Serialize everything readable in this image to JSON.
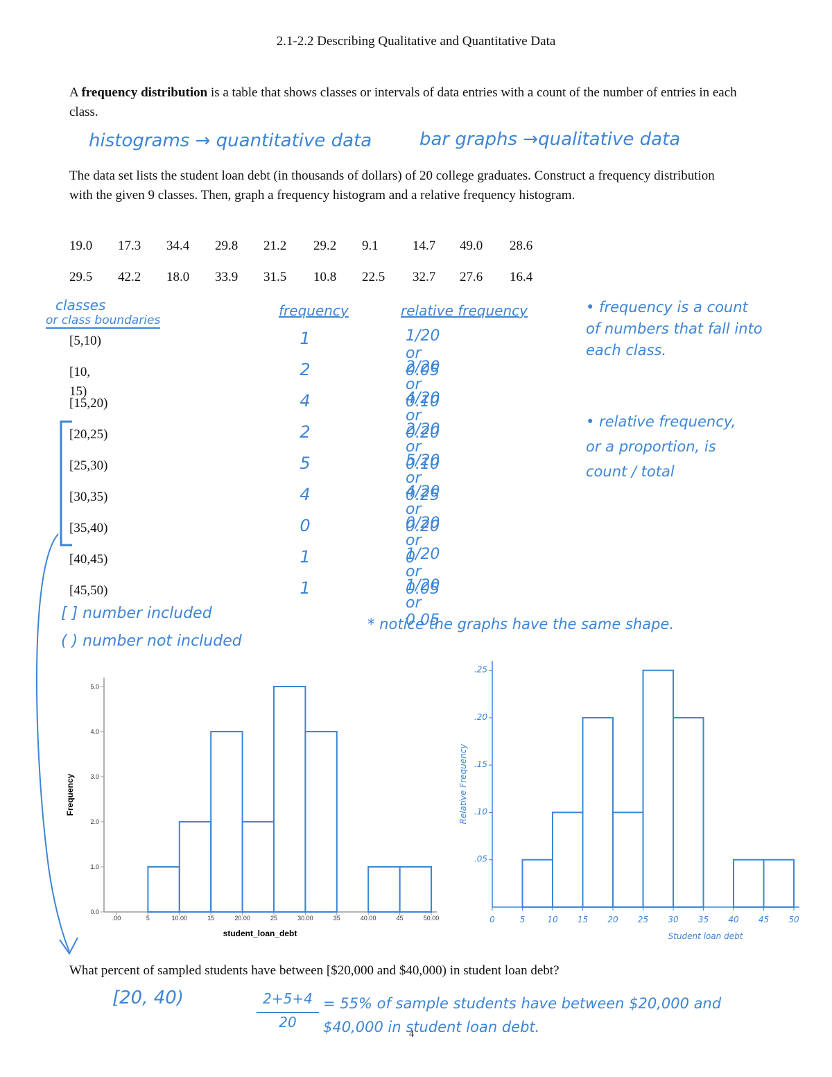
{
  "header": {
    "title": "2.1-2.2 Describing Qualitative and Quantitative Data"
  },
  "definition": {
    "lead": "A ",
    "term": "frequency distribution",
    "rest": " is a table that shows classes or intervals of data entries with a count of the number of entries in each class."
  },
  "note_types": {
    "left": "histograms → quantitative data",
    "right": "bar graphs →qualitative data"
  },
  "problem": "The data set lists the student loan debt (in thousands of dollars) of 20 college graduates. Construct a frequency distribution with the given 9 classes. Then, graph a frequency histogram and a relative frequency histogram.",
  "data_values": [
    [
      "19.0",
      "17.3",
      "34.4",
      "29.8",
      "21.2",
      "29.2",
      "9.1",
      "14.7",
      "49.0",
      "28.6"
    ],
    [
      "29.5",
      "42.2",
      "18.0",
      "33.9",
      "31.5",
      "10.8",
      "22.5",
      "32.7",
      "27.6",
      "16.4"
    ]
  ],
  "table": {
    "header": {
      "classes_line1": "classes",
      "classes_line2": "or class boundaries",
      "frequency": "frequency",
      "relative": "relative frequency"
    },
    "rows": [
      [
        "[5,10)",
        "1",
        "1/20 or 0.05"
      ],
      [
        "[10, 15)",
        "2",
        "2/20 or 0.10"
      ],
      [
        "[15,20)",
        "4",
        "4/20 or 0.20"
      ],
      [
        "[20,25)",
        "2",
        "2/20 or 0.10"
      ],
      [
        "[25,30)",
        "5",
        "5/20 or 0.25"
      ],
      [
        "[30,35)",
        "4",
        "4/20 or 0.20"
      ],
      [
        "[35,40)",
        "0",
        "0/20 or 0"
      ],
      [
        "[40,45)",
        "1",
        "1/20 or 0.05"
      ],
      [
        "[45,50)",
        "1",
        "1/20 or 0.05"
      ]
    ]
  },
  "side_notes": {
    "frequency": "• frequency is a count of numbers that fall into each class.",
    "relative": "• relative frequency, or a proportion, is count / total"
  },
  "bracket_notes": [
    "[ ] number included",
    "( ) number not included"
  ],
  "shape_note": "* notice the graphs have the same shape.",
  "chart_data": [
    {
      "type": "histogram",
      "xlabel": "student_loan_debt",
      "ylabel": "Frequency",
      "bins": [
        5,
        10,
        15,
        20,
        25,
        30,
        35,
        40,
        45,
        50
      ],
      "values": [
        1,
        2,
        4,
        2,
        5,
        4,
        0,
        1,
        1
      ],
      "color": "#3d85d6",
      "xlim": [
        0,
        50
      ],
      "xticks": [
        {
          "value": 0,
          "label": ".00"
        },
        5,
        {
          "value": 10,
          "label": "10.00"
        },
        15,
        {
          "value": 20,
          "label": "20.00"
        },
        25,
        {
          "value": 30,
          "label": "30.00"
        },
        35,
        {
          "value": 40,
          "label": "40.00"
        },
        45,
        {
          "value": 50,
          "label": "50.00"
        }
      ],
      "ylim": [
        0,
        5.2
      ],
      "yticks": [
        {
          "value": 0,
          "label": "0.0"
        },
        {
          "value": 1,
          "label": "1.0"
        },
        {
          "value": 2,
          "label": "2.0"
        },
        {
          "value": 3,
          "label": "3.0"
        },
        {
          "value": 4,
          "label": "4.0"
        },
        {
          "value": 5,
          "label": "5.0"
        }
      ]
    },
    {
      "type": "histogram",
      "xlabel": "Student loan debt",
      "ylabel": "Relative Frequency",
      "bins": [
        5,
        10,
        15,
        20,
        25,
        30,
        35,
        40,
        45,
        50
      ],
      "values": [
        0.05,
        0.1,
        0.2,
        0.1,
        0.25,
        0.2,
        0,
        0.05,
        0.05
      ],
      "color": "#3d85d6",
      "xlim": [
        0,
        50
      ],
      "xticks": [
        0,
        5,
        10,
        15,
        20,
        25,
        30,
        35,
        40,
        45,
        50
      ],
      "ylim": [
        0,
        0.26
      ],
      "yticks": [
        {
          "value": 0.05,
          "label": ".05"
        },
        {
          "value": 0.1,
          "label": ".10"
        },
        {
          "value": 0.15,
          "label": ".15"
        },
        {
          "value": 0.2,
          "label": ".20"
        },
        {
          "value": 0.25,
          "label": ".25"
        }
      ]
    }
  ],
  "question": "What percent of sampled students have between [$20,000 and $40,000) in student loan debt?",
  "answer": {
    "interval": "[20, 40)",
    "numerator": "2+5+4",
    "denominator": "20",
    "result": "= 55% of sample students have between $20,000 and $40,000 in student loan debt."
  },
  "page_number": "4"
}
